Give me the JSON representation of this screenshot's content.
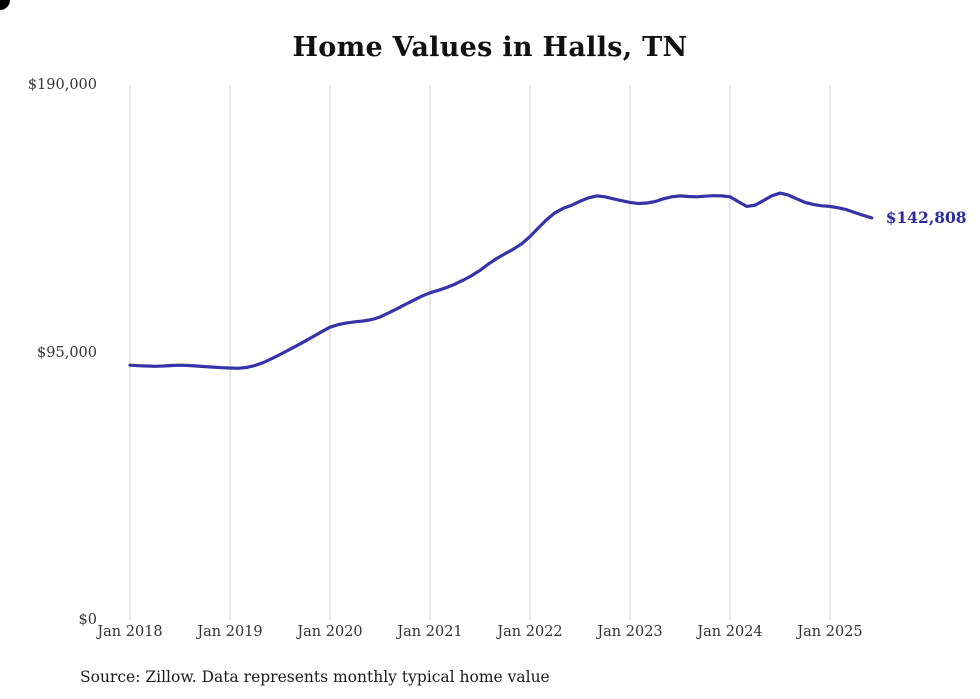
{
  "title": "Home Values in Halls, TN",
  "source_note": "Source: Zillow. Data represents monthly typical home value",
  "end_label": "$142,808",
  "colors": {
    "line": "#3533a8",
    "grid": "#cccccc",
    "end_label": "#2b2ba0",
    "text": "#333333"
  },
  "chart_data": {
    "type": "line",
    "title": "Home Values in Halls, TN",
    "xlabel": "",
    "ylabel": "",
    "ylim": [
      0,
      190000
    ],
    "grid": "vertical-only",
    "legend": "none",
    "x_start": "2018-01",
    "x_end": "2025-06",
    "x_tick_labels": [
      "Jan 2018",
      "Jan 2019",
      "Jan 2020",
      "Jan 2021",
      "Jan 2022",
      "Jan 2023",
      "Jan 2024",
      "Jan 2025"
    ],
    "y_ticks": [
      {
        "label": "$190,000",
        "value": 190000
      },
      {
        "label": "$95,000",
        "value": 95000
      },
      {
        "label": "$0",
        "value": 0
      }
    ],
    "last_value": 142808,
    "series": [
      {
        "name": "Monthly typical home value",
        "values": [
          90500,
          90300,
          90200,
          90100,
          90200,
          90400,
          90500,
          90400,
          90200,
          90000,
          89800,
          89600,
          89500,
          89400,
          89700,
          90400,
          91400,
          92800,
          94300,
          95800,
          97400,
          99000,
          100700,
          102400,
          104000,
          104900,
          105500,
          105900,
          106200,
          106700,
          107600,
          109000,
          110500,
          112000,
          113500,
          115000,
          116200,
          117100,
          118100,
          119300,
          120700,
          122300,
          124200,
          126400,
          128400,
          130100,
          131700,
          133600,
          136200,
          139200,
          142200,
          144600,
          146200,
          147300,
          148700,
          149900,
          150600,
          150300,
          149600,
          148900,
          148300,
          147900,
          148100,
          148600,
          149600,
          150300,
          150600,
          150400,
          150300,
          150500,
          150700,
          150600,
          150300,
          148600,
          146900,
          147300,
          148900,
          150600,
          151600,
          150900,
          149600,
          148300,
          147600,
          147100,
          146900,
          146400,
          145700,
          144700,
          143700,
          142808
        ]
      }
    ]
  }
}
